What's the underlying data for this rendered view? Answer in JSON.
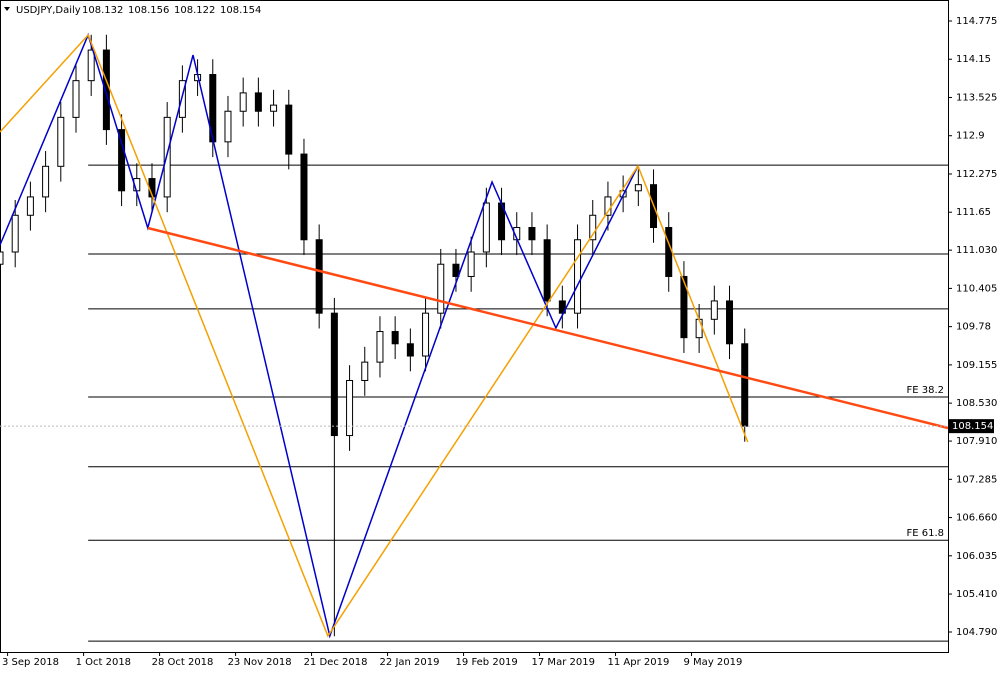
{
  "chart_data": {
    "type": "candlestick",
    "symbol": "USDJPY,Daily",
    "quote": [
      108.132,
      108.156,
      108.122,
      108.154
    ],
    "x": [
      0,
      4,
      8,
      12,
      16,
      20,
      24,
      28,
      32,
      36,
      40,
      44,
      48,
      52,
      56,
      60,
      64,
      68,
      72,
      76,
      80,
      84,
      88,
      92,
      96,
      100,
      104,
      108,
      112,
      116,
      120,
      124,
      128,
      132,
      136,
      140,
      144,
      148,
      152,
      156,
      160,
      164,
      168,
      172,
      176,
      180,
      184,
      188,
      192,
      196
    ],
    "open": [
      110.8,
      111.0,
      111.6,
      111.9,
      112.4,
      113.2,
      113.8,
      114.3,
      113.0,
      112.0,
      112.2,
      111.9,
      113.2,
      113.8,
      113.9,
      112.8,
      113.3,
      113.6,
      113.3,
      113.4,
      112.6,
      111.2,
      110.0,
      108.0,
      108.9,
      109.2,
      109.7,
      109.5,
      109.3,
      110.0,
      110.8,
      110.6,
      111.0,
      111.8,
      111.2,
      111.4,
      111.2,
      110.2,
      110.0,
      111.2,
      111.6,
      111.9,
      112.0,
      112.1,
      111.4,
      110.6,
      109.6,
      109.9,
      110.2,
      109.5
    ],
    "high": [
      111.25,
      111.85,
      112.15,
      112.65,
      113.45,
      114.05,
      114.55,
      114.55,
      113.25,
      112.45,
      112.45,
      113.45,
      114.05,
      114.15,
      114.15,
      113.55,
      113.85,
      113.85,
      113.65,
      113.65,
      112.85,
      111.45,
      110.25,
      109.15,
      109.45,
      109.95,
      109.95,
      109.75,
      110.25,
      111.05,
      111.05,
      111.25,
      112.05,
      112.05,
      111.65,
      111.65,
      111.45,
      110.45,
      111.45,
      111.85,
      112.15,
      112.25,
      112.35,
      112.35,
      111.65,
      110.85,
      110.15,
      110.45,
      110.45,
      109.75
    ],
    "low": [
      110.55,
      110.75,
      111.35,
      111.65,
      112.15,
      112.95,
      113.55,
      112.75,
      111.75,
      111.75,
      111.65,
      111.65,
      112.95,
      113.55,
      112.55,
      112.55,
      113.05,
      113.05,
      113.05,
      112.35,
      110.95,
      109.75,
      104.72,
      107.75,
      108.65,
      108.95,
      109.25,
      109.05,
      109.05,
      109.75,
      110.35,
      110.35,
      110.75,
      110.95,
      110.95,
      110.95,
      109.95,
      109.75,
      109.75,
      110.95,
      111.35,
      111.65,
      111.75,
      111.15,
      110.35,
      109.35,
      109.35,
      109.65,
      109.25,
      107.9
    ],
    "close": [
      111.0,
      111.6,
      111.9,
      112.4,
      113.2,
      113.8,
      114.3,
      113.0,
      112.0,
      112.2,
      111.9,
      113.2,
      113.8,
      113.9,
      112.8,
      113.3,
      113.6,
      113.3,
      113.4,
      112.6,
      111.2,
      110.0,
      108.0,
      108.9,
      109.2,
      109.7,
      109.5,
      109.3,
      110.0,
      110.8,
      110.6,
      111.0,
      111.8,
      111.2,
      111.4,
      111.2,
      110.2,
      110.0,
      111.2,
      111.6,
      111.9,
      112.0,
      112.1,
      111.4,
      110.6,
      109.6,
      109.9,
      110.2,
      109.5,
      108.154
    ],
    "xlim": [
      0,
      249.5
    ],
    "ylim": [
      104.463,
      115.118
    ],
    "yticks": [
      114.775,
      114.15,
      113.525,
      112.9,
      112.275,
      111.65,
      {
        "value": 111.03,
        "label": "111.030"
      },
      110.405,
      109.78,
      109.155,
      {
        "value": 108.53,
        "label": "108.530"
      },
      {
        "value": 107.91,
        "label": "107.910"
      },
      107.285,
      {
        "value": 106.66,
        "label": "106.660"
      },
      106.035,
      {
        "value": 105.41,
        "label": "105.410"
      },
      {
        "value": 104.79,
        "label": "104.790"
      }
    ],
    "xticks": [
      {
        "value": 2,
        "label": "3 Sep 2018"
      },
      {
        "value": 22,
        "label": "1 Oct 2018"
      },
      {
        "value": 42,
        "label": "28 Oct 2018"
      },
      {
        "value": 62,
        "label": "23 Nov 2018"
      },
      {
        "value": 82,
        "label": "21 Dec 2018"
      },
      {
        "value": 102,
        "label": "22 Jan 2019"
      },
      {
        "value": 122,
        "label": "19 Feb 2019"
      },
      {
        "value": 142,
        "label": "17 Mar 2019"
      },
      {
        "value": 162,
        "label": "11 Apr 2019"
      },
      {
        "value": 182,
        "label": "9 May 2019"
      }
    ],
    "levels": [
      {
        "value": 112.42
      },
      {
        "value": 110.967
      },
      {
        "value": 110.07
      },
      {
        "value": 108.63,
        "label": "FE 38.2"
      },
      {
        "value": 107.49
      },
      {
        "value": 106.29,
        "label": "FE 61.8"
      },
      {
        "value": 104.64
      }
    ],
    "levels_start": 23.2,
    "overlays": [
      {
        "name_color": "#0000cc",
        "color": "#0000cc",
        "x": [
          0,
          23.2,
          38.9,
          50.8,
          86.8,
          129.5,
          146.3,
          167.9
        ],
        "values": [
          111.114,
          114.546,
          111.392,
          114.219,
          104.724,
          112.144,
          109.758,
          112.405
        ]
      },
      {
        "color": "#f5a000",
        "x": [
          0,
          23.2,
          86.3,
          167.9,
          196.8
        ],
        "values": [
          112.961,
          114.546,
          104.724,
          112.405,
          107.895
        ]
      },
      {
        "color": "#ff4a14",
        "x": [
          38.9,
          249.5
        ],
        "values": [
          111.392,
          108.124
        ]
      }
    ],
    "last_price": 108.154
  }
}
